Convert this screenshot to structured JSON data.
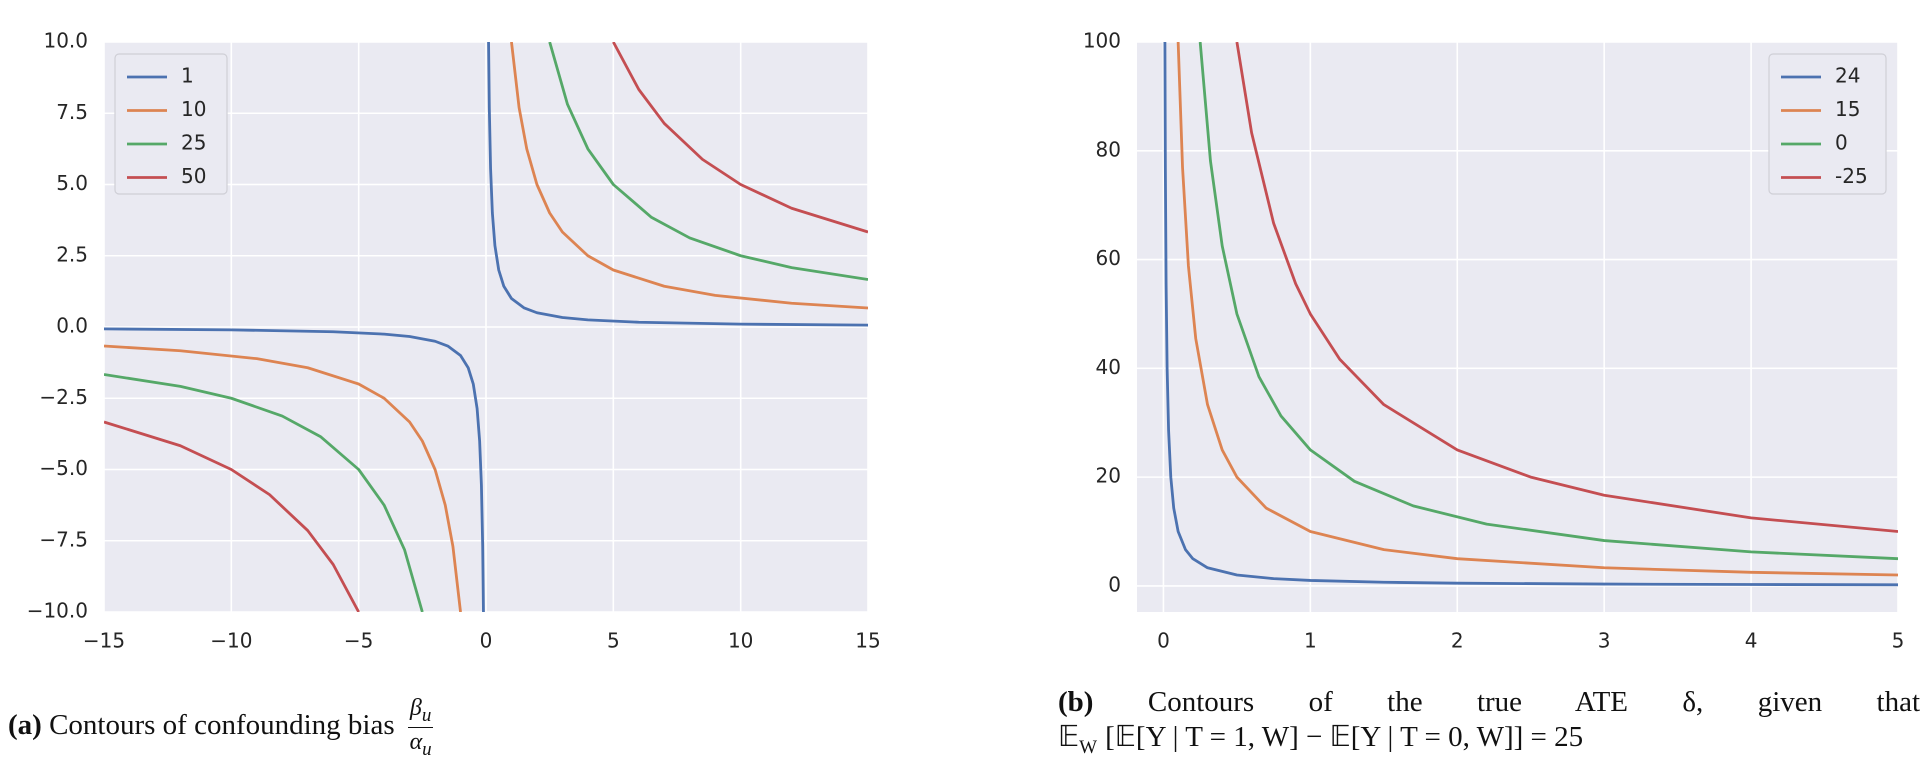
{
  "chart_data": [
    {
      "type": "line",
      "xlim": [
        -15,
        15
      ],
      "ylim": [
        -10,
        10
      ],
      "xticks": [
        {
          "value": -15,
          "label": "−15"
        },
        {
          "value": -10,
          "label": "−10"
        },
        {
          "value": -5,
          "label": "−5"
        },
        0,
        5,
        10,
        15
      ],
      "yticks": [
        {
          "value": -10,
          "label": "−10.0"
        },
        {
          "value": -7.5,
          "label": "−7.5"
        },
        {
          "value": -5,
          "label": "−5.0"
        },
        {
          "value": -2.5,
          "label": "−2.5"
        },
        {
          "value": 0,
          "label": "0.0"
        },
        2.5,
        {
          "value": 5,
          "label": "5.0"
        },
        7.5,
        {
          "value": 10,
          "label": "10.0"
        }
      ],
      "grid": true,
      "legend": "upper left",
      "series": [
        {
          "name": "1",
          "color": "#4c72b0",
          "x": [
            -15,
            -10,
            -6,
            -4,
            -3,
            -2,
            -1.5,
            -1,
            -0.7,
            -0.5,
            -0.35,
            -0.25,
            -0.18,
            -0.13,
            -0.1,
            null,
            0.1,
            0.13,
            0.18,
            0.25,
            0.35,
            0.5,
            0.7,
            1,
            1.5,
            2,
            3,
            4,
            6,
            10,
            15
          ],
          "values": [
            -0.067,
            -0.1,
            -0.167,
            -0.25,
            -0.333,
            -0.5,
            -0.667,
            -1,
            -1.429,
            -2,
            -2.857,
            -4,
            -5.556,
            -7.692,
            -10,
            null,
            10,
            7.692,
            5.556,
            4,
            2.857,
            2,
            1.429,
            1,
            0.667,
            0.5,
            0.333,
            0.25,
            0.167,
            0.1,
            0.067
          ]
        },
        {
          "name": "10",
          "color": "#dd8452",
          "x": [
            -15,
            -12,
            -9,
            -7,
            -5,
            -4,
            -3,
            -2.5,
            -2,
            -1.6,
            -1.3,
            -1,
            null,
            1,
            1.3,
            1.6,
            2,
            2.5,
            3,
            4,
            5,
            7,
            9,
            12,
            15
          ],
          "values": [
            -0.667,
            -0.833,
            -1.111,
            -1.429,
            -2,
            -2.5,
            -3.333,
            -4,
            -5,
            -6.25,
            -7.692,
            -10,
            null,
            10,
            7.692,
            6.25,
            5,
            4,
            3.333,
            2.5,
            2,
            1.429,
            1.111,
            0.833,
            0.667
          ]
        },
        {
          "name": "25",
          "color": "#55a868",
          "x": [
            -15,
            -12,
            -10,
            -8,
            -6.5,
            -5,
            -4,
            -3.2,
            -2.5,
            null,
            2.5,
            3.2,
            4,
            5,
            6.5,
            8,
            10,
            12,
            15
          ],
          "values": [
            -1.667,
            -2.083,
            -2.5,
            -3.125,
            -3.846,
            -5,
            -6.25,
            -7.813,
            -10,
            null,
            10,
            7.813,
            6.25,
            5,
            3.846,
            3.125,
            2.5,
            2.083,
            1.667
          ]
        },
        {
          "name": "50",
          "color": "#c44e52",
          "x": [
            -15,
            -12,
            -10,
            -8.5,
            -7,
            -6,
            -5,
            null,
            5,
            6,
            7,
            8.5,
            10,
            12,
            15
          ],
          "values": [
            -3.333,
            -4.167,
            -5,
            -5.882,
            -7.143,
            -8.333,
            -10,
            null,
            10,
            8.333,
            7.143,
            5.882,
            5,
            4.167,
            3.333
          ]
        }
      ],
      "caption": {
        "label": "(a)",
        "text": "Contours of confounding bias",
        "numerator": "β",
        "numerator_sub": "u",
        "denominator": "α",
        "denominator_sub": "u"
      }
    },
    {
      "type": "line",
      "xlim": [
        -0.18,
        5
      ],
      "ylim": [
        -4.8,
        100
      ],
      "xticks": [
        0,
        1,
        2,
        3,
        4,
        5
      ],
      "yticks": [
        0,
        20,
        40,
        60,
        80,
        100
      ],
      "grid": true,
      "legend": "upper right",
      "series": [
        {
          "name": "24",
          "color": "#4c72b0",
          "x": [
            0.01,
            0.013,
            0.018,
            0.025,
            0.035,
            0.05,
            0.07,
            0.1,
            0.15,
            0.2,
            0.3,
            0.5,
            0.75,
            1,
            1.5,
            2,
            3,
            4,
            5
          ],
          "values": [
            100,
            76.92,
            55.56,
            40,
            28.57,
            20,
            14.29,
            10,
            6.667,
            5,
            3.333,
            2,
            1.333,
            1,
            0.667,
            0.5,
            0.333,
            0.25,
            0.2
          ]
        },
        {
          "name": "15",
          "color": "#dd8452",
          "x": [
            0.1,
            0.13,
            0.17,
            0.22,
            0.3,
            0.4,
            0.5,
            0.7,
            1,
            1.5,
            2,
            3,
            4,
            5
          ],
          "values": [
            100,
            76.92,
            58.82,
            45.45,
            33.33,
            25,
            20,
            14.29,
            10,
            6.667,
            5,
            3.333,
            2.5,
            2
          ]
        },
        {
          "name": "0",
          "color": "#55a868",
          "x": [
            0.25,
            0.32,
            0.4,
            0.5,
            0.65,
            0.8,
            1,
            1.3,
            1.7,
            2.2,
            3,
            4,
            5
          ],
          "values": [
            100,
            78.13,
            62.5,
            50,
            38.46,
            31.25,
            25,
            19.23,
            14.71,
            11.36,
            8.333,
            6.25,
            5
          ]
        },
        {
          "name": "-25",
          "color": "#c44e52",
          "x": [
            0.5,
            0.6,
            0.75,
            0.9,
            1,
            1.2,
            1.5,
            2,
            2.5,
            3,
            4,
            5
          ],
          "values": [
            100,
            83.33,
            66.67,
            55.56,
            50,
            41.67,
            33.33,
            25,
            20,
            16.67,
            12.5,
            10
          ]
        }
      ],
      "caption": {
        "label": "(b)",
        "text": "Contours of the true ATE δ, given that",
        "expectation": "𝔼",
        "expectation_sub": "W",
        "rest": "[𝔼[Y | T = 1, W] − 𝔼[Y | T = 0, W]] = 25"
      }
    }
  ]
}
